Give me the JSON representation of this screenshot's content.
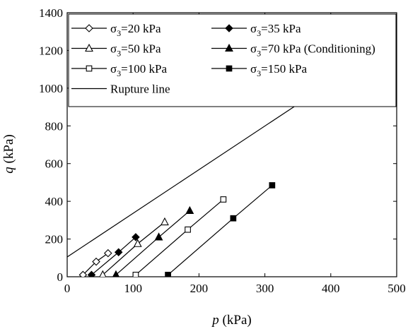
{
  "chart_data": {
    "type": "line",
    "xlabel": {
      "var": "p",
      "unit": " (kPa)"
    },
    "ylabel": {
      "var": "q",
      "unit": " (kPa)"
    },
    "xlim": [
      0,
      500
    ],
    "ylim": [
      0,
      1400
    ],
    "xticks": [
      0,
      100,
      200,
      300,
      400,
      500
    ],
    "yticks": [
      0,
      200,
      400,
      600,
      800,
      1000,
      1200,
      1400
    ],
    "legend_position": "top-right",
    "grid": false,
    "series": [
      {
        "name": "σ3=20 kPa",
        "label_pre": "σ",
        "label_sub": "3",
        "label_post": "=20 kPa",
        "marker": "diamond",
        "filled": false,
        "x": [
          24,
          44,
          62
        ],
        "y": [
          10,
          80,
          125
        ]
      },
      {
        "name": "σ3=35 kPa",
        "label_pre": "σ",
        "label_sub": "3",
        "label_post": "=35 kPa",
        "marker": "diamond",
        "filled": true,
        "x": [
          37,
          78,
          104
        ],
        "y": [
          10,
          130,
          210
        ]
      },
      {
        "name": "σ3=50 kPa",
        "label_pre": "σ",
        "label_sub": "3",
        "label_post": "=50 kPa",
        "marker": "triangle",
        "filled": false,
        "x": [
          54,
          107,
          148
        ],
        "y": [
          10,
          175,
          290
        ]
      },
      {
        "name": "σ3=70 kPa (Conditioning)",
        "label_pre": "σ",
        "label_sub": "3",
        "label_post": "=70 kPa (Conditioning)",
        "marker": "triangle",
        "filled": true,
        "x": [
          74,
          139,
          186
        ],
        "y": [
          10,
          210,
          350
        ]
      },
      {
        "name": "σ3=100 kPa",
        "label_pre": "σ",
        "label_sub": "3",
        "label_post": "=100 kPa",
        "marker": "square",
        "filled": false,
        "x": [
          104,
          183,
          237
        ],
        "y": [
          10,
          250,
          410
        ]
      },
      {
        "name": "σ3=150 kPa",
        "label_pre": "σ",
        "label_sub": "3",
        "label_post": "=150 kPa",
        "marker": "square",
        "filled": true,
        "x": [
          153,
          252,
          311
        ],
        "y": [
          10,
          310,
          485
        ]
      },
      {
        "name": "Rupture line",
        "label_pre": "Rupture line",
        "label_sub": "",
        "label_post": "",
        "marker": "none",
        "filled": false,
        "x": [
          0,
          350
        ],
        "y": [
          105,
          915
        ]
      }
    ]
  }
}
